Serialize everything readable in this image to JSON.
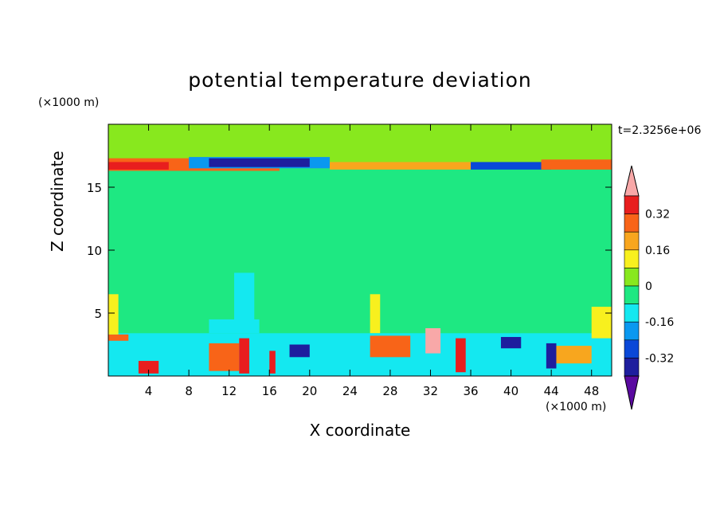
{
  "chart_data": {
    "type": "heatmap",
    "title": "potential temperature deviation",
    "xlabel": "X coordinate",
    "ylabel": "Z coordinate",
    "x_unit": "(×1000 m)",
    "y_unit": "(×1000 m)",
    "time_label": "t=2.3256e+06",
    "xlim": [
      0,
      50
    ],
    "ylim": [
      0,
      20
    ],
    "x_ticks": [
      4,
      8,
      12,
      16,
      20,
      24,
      28,
      32,
      36,
      40,
      44,
      48
    ],
    "y_ticks": [
      5,
      10,
      15
    ],
    "colorbar": {
      "labels": [
        "0.32",
        "0.16",
        "0",
        "-0.16",
        "-0.32"
      ],
      "label_values": [
        0.32,
        0.16,
        0,
        -0.16,
        -0.32
      ],
      "levels": [
        -0.4,
        -0.32,
        -0.24,
        -0.16,
        -0.08,
        0,
        0.08,
        0.16,
        0.24,
        0.32,
        0.4
      ],
      "colors": [
        "#5a0aa0",
        "#1e1e9e",
        "#0a48d8",
        "#0a98f0",
        "#14e8f0",
        "#1ee882",
        "#88e81e",
        "#f8f01e",
        "#f8a61e",
        "#f86418",
        "#e81e1e",
        "#f8a8a8"
      ]
    },
    "regions": [
      {
        "x": [
          0,
          50
        ],
        "y": [
          0,
          20
        ],
        "value": 0.02
      },
      {
        "x": [
          0,
          50
        ],
        "y": [
          3.3,
          16.5
        ],
        "value": -0.02
      },
      {
        "x": [
          0,
          9
        ],
        "y": [
          3.3,
          15.5
        ],
        "value": -0.02
      },
      {
        "x": [
          12.5,
          14.5
        ],
        "y": [
          3.5,
          8.2
        ],
        "value": -0.1
      },
      {
        "x": [
          10,
          15
        ],
        "y": [
          3.4,
          4.5
        ],
        "value": -0.12
      },
      {
        "x": [
          26,
          27
        ],
        "y": [
          3.4,
          6.5
        ],
        "value": 0.1
      },
      {
        "x": [
          0,
          17
        ],
        "y": [
          16.3,
          17.3
        ],
        "value": 0.3
      },
      {
        "x": [
          0,
          6
        ],
        "y": [
          16.4,
          17.0
        ],
        "value": 0.38
      },
      {
        "x": [
          8,
          22
        ],
        "y": [
          16.5,
          17.4
        ],
        "value": -0.2
      },
      {
        "x": [
          10,
          20
        ],
        "y": [
          16.6,
          17.3
        ],
        "value": -0.38
      },
      {
        "x": [
          22,
          36
        ],
        "y": [
          16.4,
          17.0
        ],
        "value": 0.2
      },
      {
        "x": [
          36,
          44
        ],
        "y": [
          16.4,
          17.0
        ],
        "value": -0.3
      },
      {
        "x": [
          43,
          50
        ],
        "y": [
          16.4,
          17.2
        ],
        "value": 0.3
      },
      {
        "x": [
          0,
          50
        ],
        "y": [
          0,
          3.4
        ],
        "value": -0.1
      },
      {
        "x": [
          3,
          5
        ],
        "y": [
          0.2,
          1.2
        ],
        "value": 0.35
      },
      {
        "x": [
          10,
          13
        ],
        "y": [
          0.4,
          2.6
        ],
        "value": 0.3
      },
      {
        "x": [
          13,
          14
        ],
        "y": [
          0.2,
          3.0
        ],
        "value": 0.38
      },
      {
        "x": [
          16,
          16.6
        ],
        "y": [
          0.2,
          2.0
        ],
        "value": 0.38
      },
      {
        "x": [
          18,
          20
        ],
        "y": [
          1.5,
          2.5
        ],
        "value": -0.35
      },
      {
        "x": [
          26,
          30
        ],
        "y": [
          1.5,
          3.2
        ],
        "value": 0.3
      },
      {
        "x": [
          31.5,
          33
        ],
        "y": [
          1.8,
          3.8
        ],
        "value": 0.4
      },
      {
        "x": [
          34.5,
          35.5
        ],
        "y": [
          0.3,
          3.0
        ],
        "value": 0.38
      },
      {
        "x": [
          39,
          41
        ],
        "y": [
          2.2,
          3.1
        ],
        "value": -0.35
      },
      {
        "x": [
          43.5,
          44.5
        ],
        "y": [
          0.6,
          2.6
        ],
        "value": -0.4
      },
      {
        "x": [
          44.5,
          48
        ],
        "y": [
          1.0,
          2.4
        ],
        "value": 0.2
      },
      {
        "x": [
          0,
          2
        ],
        "y": [
          2.8,
          3.3
        ],
        "value": 0.3
      },
      {
        "x": [
          48,
          50
        ],
        "y": [
          3.0,
          5.5
        ],
        "value": 0.1
      },
      {
        "x": [
          0,
          1
        ],
        "y": [
          3.3,
          6.5
        ],
        "value": 0.12
      }
    ]
  }
}
